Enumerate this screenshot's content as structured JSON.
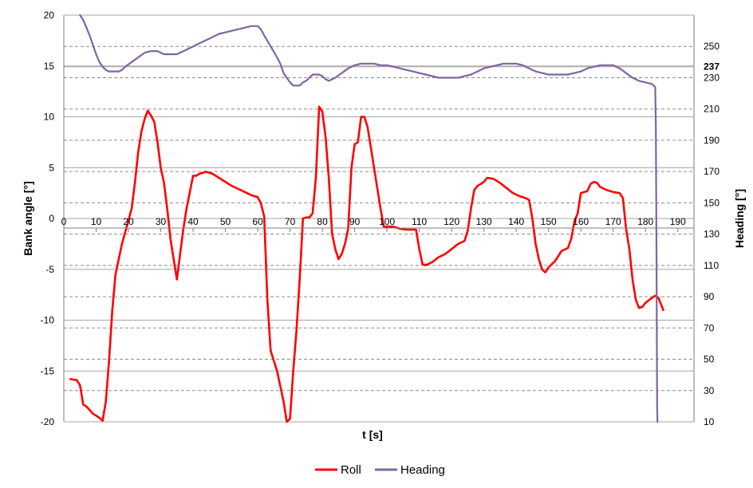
{
  "chart_data": {
    "type": "line",
    "title": "",
    "xlabel": "t [s]",
    "ylabel_left": "Bank angle [°]",
    "ylabel_right": "Heading [°]",
    "xlim": [
      0,
      195
    ],
    "ylim_left": [
      -20,
      20
    ],
    "ylim_right": [
      10,
      270
    ],
    "x_ticks": [
      "0",
      "10",
      "20",
      "30",
      "40",
      "50",
      "60",
      "70",
      "80",
      "90",
      "100",
      "110",
      "120",
      "130",
      "140",
      "150",
      "160",
      "170",
      "180",
      "190"
    ],
    "y_left_ticks": [
      "-20",
      "-15",
      "-10",
      "-5",
      "0",
      "5",
      "10",
      "15",
      "20"
    ],
    "y_right_ticks": [
      "10",
      "30",
      "50",
      "70",
      "90",
      "110",
      "130",
      "150",
      "170",
      "190",
      "210",
      "230",
      "250"
    ],
    "highlight_right_tick": "237",
    "grid": true,
    "legend": "bottom-center",
    "colors": {
      "roll": "#ff0000",
      "heading": "#8064a2",
      "grid_solid": "#a6a6a6",
      "grid_dashed": "#8c8c8c"
    },
    "series": [
      {
        "name": "Roll",
        "axis": "left",
        "points": [
          [
            2,
            -15.8
          ],
          [
            4,
            -15.9
          ],
          [
            5,
            -16.4
          ],
          [
            6,
            -18.3
          ],
          [
            7,
            -18.5
          ],
          [
            9,
            -19.2
          ],
          [
            11,
            -19.6
          ],
          [
            12,
            -19.9
          ],
          [
            13,
            -18.0
          ],
          [
            14,
            -14.0
          ],
          [
            15,
            -9.0
          ],
          [
            16,
            -5.5
          ],
          [
            18,
            -2.5
          ],
          [
            20,
            -0.2
          ],
          [
            21,
            1.0
          ],
          [
            22,
            3.5
          ],
          [
            23,
            6.5
          ],
          [
            24,
            8.5
          ],
          [
            25,
            9.8
          ],
          [
            26,
            10.6
          ],
          [
            27,
            10.1
          ],
          [
            28,
            9.5
          ],
          [
            29,
            7.5
          ],
          [
            30,
            5.0
          ],
          [
            31,
            3.5
          ],
          [
            32,
            1.0
          ],
          [
            33,
            -2.0
          ],
          [
            34,
            -4.0
          ],
          [
            35,
            -6.0
          ],
          [
            36,
            -3.5
          ],
          [
            37,
            -1.0
          ],
          [
            38,
            1.0
          ],
          [
            39,
            2.6
          ],
          [
            40,
            4.2
          ],
          [
            41,
            4.2
          ],
          [
            42,
            4.4
          ],
          [
            44,
            4.6
          ],
          [
            46,
            4.4
          ],
          [
            48,
            4.0
          ],
          [
            50,
            3.6
          ],
          [
            52,
            3.2
          ],
          [
            54,
            2.9
          ],
          [
            56,
            2.6
          ],
          [
            58,
            2.3
          ],
          [
            60,
            2.1
          ],
          [
            61,
            1.5
          ],
          [
            62,
            0.2
          ],
          [
            63,
            -8.0
          ],
          [
            64,
            -13.0
          ],
          [
            65,
            -14.0
          ],
          [
            66,
            -15.0
          ],
          [
            67,
            -16.5
          ],
          [
            68,
            -18.0
          ],
          [
            69,
            -20.0
          ],
          [
            70,
            -19.7
          ],
          [
            71,
            -15.0
          ],
          [
            72,
            -11.0
          ],
          [
            73,
            -6.0
          ],
          [
            74,
            0.0
          ],
          [
            75,
            0.1
          ],
          [
            76,
            0.1
          ],
          [
            77,
            0.5
          ],
          [
            78,
            4.0
          ],
          [
            79,
            11.0
          ],
          [
            80,
            10.5
          ],
          [
            81,
            8.0
          ],
          [
            82,
            4.0
          ],
          [
            83,
            -1.5
          ],
          [
            84,
            -3.0
          ],
          [
            85,
            -4.0
          ],
          [
            86,
            -3.5
          ],
          [
            87,
            -2.5
          ],
          [
            88,
            -1.0
          ],
          [
            89,
            5.0
          ],
          [
            90,
            7.3
          ],
          [
            91,
            7.5
          ],
          [
            92,
            10.0
          ],
          [
            93,
            10.0
          ],
          [
            94,
            9.0
          ],
          [
            95,
            7.0
          ],
          [
            96,
            5.0
          ],
          [
            97,
            3.0
          ],
          [
            98,
            1.0
          ],
          [
            99,
            -0.8
          ],
          [
            100,
            -0.8
          ],
          [
            102,
            -0.8
          ],
          [
            104,
            -1.0
          ],
          [
            106,
            -1.1
          ],
          [
            108,
            -1.1
          ],
          [
            109,
            -1.1
          ],
          [
            110,
            -3.0
          ],
          [
            111,
            -4.5
          ],
          [
            112,
            -4.6
          ],
          [
            114,
            -4.3
          ],
          [
            116,
            -3.8
          ],
          [
            118,
            -3.5
          ],
          [
            120,
            -3.0
          ],
          [
            122,
            -2.5
          ],
          [
            124,
            -2.2
          ],
          [
            125,
            -1.2
          ],
          [
            126,
            1.0
          ],
          [
            127,
            2.8
          ],
          [
            128,
            3.2
          ],
          [
            130,
            3.6
          ],
          [
            131,
            4.0
          ],
          [
            133,
            3.9
          ],
          [
            135,
            3.5
          ],
          [
            137,
            3.0
          ],
          [
            139,
            2.5
          ],
          [
            141,
            2.2
          ],
          [
            143,
            2.0
          ],
          [
            144,
            1.8
          ],
          [
            145,
            0.0
          ],
          [
            146,
            -2.5
          ],
          [
            147,
            -4.0
          ],
          [
            148,
            -5.0
          ],
          [
            149,
            -5.3
          ],
          [
            150,
            -4.8
          ],
          [
            152,
            -4.2
          ],
          [
            154,
            -3.2
          ],
          [
            156,
            -2.9
          ],
          [
            157,
            -2.0
          ],
          [
            158,
            -0.3
          ],
          [
            159,
            0.5
          ],
          [
            160,
            2.5
          ],
          [
            162,
            2.7
          ],
          [
            163,
            3.4
          ],
          [
            164,
            3.6
          ],
          [
            165,
            3.5
          ],
          [
            166,
            3.1
          ],
          [
            168,
            2.8
          ],
          [
            170,
            2.6
          ],
          [
            172,
            2.5
          ],
          [
            173,
            2.0
          ],
          [
            174,
            -1.0
          ],
          [
            175,
            -3.0
          ],
          [
            176,
            -6.0
          ],
          [
            177,
            -8.0
          ],
          [
            178,
            -8.8
          ],
          [
            179,
            -8.7
          ],
          [
            180,
            -8.3
          ],
          [
            182,
            -7.8
          ],
          [
            183,
            -7.6
          ],
          [
            184,
            -7.8
          ],
          [
            185,
            -8.6
          ],
          [
            185.5,
            -9.0
          ]
        ]
      },
      {
        "name": "Heading",
        "axis": "right",
        "points": [
          [
            5,
            270
          ],
          [
            6,
            267
          ],
          [
            7,
            262
          ],
          [
            8,
            257
          ],
          [
            9,
            251
          ],
          [
            10,
            245
          ],
          [
            11,
            240
          ],
          [
            12,
            237
          ],
          [
            13,
            235
          ],
          [
            14,
            234
          ],
          [
            15,
            234
          ],
          [
            16,
            234
          ],
          [
            17,
            234
          ],
          [
            18,
            235
          ],
          [
            19,
            237
          ],
          [
            21,
            240
          ],
          [
            23,
            243
          ],
          [
            25,
            246
          ],
          [
            27,
            247
          ],
          [
            29,
            247
          ],
          [
            30,
            246
          ],
          [
            31,
            245
          ],
          [
            33,
            245
          ],
          [
            35,
            245
          ],
          [
            36,
            246
          ],
          [
            38,
            248
          ],
          [
            40,
            250
          ],
          [
            42,
            252
          ],
          [
            44,
            254
          ],
          [
            46,
            256
          ],
          [
            48,
            258
          ],
          [
            50,
            259
          ],
          [
            52,
            260
          ],
          [
            54,
            261
          ],
          [
            56,
            262
          ],
          [
            58,
            263
          ],
          [
            60,
            263
          ],
          [
            61,
            261
          ],
          [
            62,
            257
          ],
          [
            64,
            250
          ],
          [
            66,
            243
          ],
          [
            67,
            239
          ],
          [
            68,
            233
          ],
          [
            69,
            230
          ],
          [
            70,
            227
          ],
          [
            71,
            225
          ],
          [
            72,
            225
          ],
          [
            73,
            225
          ],
          [
            74,
            227
          ],
          [
            75,
            228
          ],
          [
            76,
            230
          ],
          [
            77,
            232
          ],
          [
            78,
            232
          ],
          [
            79,
            232
          ],
          [
            80,
            231
          ],
          [
            81,
            229
          ],
          [
            82,
            228
          ],
          [
            83,
            229
          ],
          [
            84,
            230
          ],
          [
            86,
            233
          ],
          [
            88,
            236
          ],
          [
            90,
            238
          ],
          [
            92,
            239
          ],
          [
            94,
            239
          ],
          [
            96,
            239
          ],
          [
            98,
            238
          ],
          [
            100,
            238
          ],
          [
            102,
            237
          ],
          [
            104,
            236
          ],
          [
            106,
            235
          ],
          [
            108,
            234
          ],
          [
            110,
            233
          ],
          [
            112,
            232
          ],
          [
            114,
            231
          ],
          [
            116,
            230
          ],
          [
            118,
            230
          ],
          [
            120,
            230
          ],
          [
            122,
            230
          ],
          [
            124,
            231
          ],
          [
            126,
            232
          ],
          [
            128,
            234
          ],
          [
            130,
            236
          ],
          [
            132,
            237
          ],
          [
            134,
            238
          ],
          [
            136,
            239
          ],
          [
            138,
            239
          ],
          [
            140,
            239
          ],
          [
            142,
            238
          ],
          [
            144,
            236
          ],
          [
            146,
            234
          ],
          [
            148,
            233
          ],
          [
            150,
            232
          ],
          [
            152,
            232
          ],
          [
            154,
            232
          ],
          [
            156,
            232
          ],
          [
            158,
            233
          ],
          [
            160,
            234
          ],
          [
            162,
            236
          ],
          [
            164,
            237
          ],
          [
            166,
            238
          ],
          [
            168,
            238
          ],
          [
            170,
            238
          ],
          [
            172,
            236
          ],
          [
            174,
            233
          ],
          [
            176,
            230
          ],
          [
            178,
            228
          ],
          [
            180,
            227
          ],
          [
            182,
            226
          ],
          [
            183,
            224
          ],
          [
            183.2,
            200
          ],
          [
            183.4,
            120
          ],
          [
            183.6,
            20
          ],
          [
            183.7,
            10
          ]
        ]
      }
    ]
  }
}
